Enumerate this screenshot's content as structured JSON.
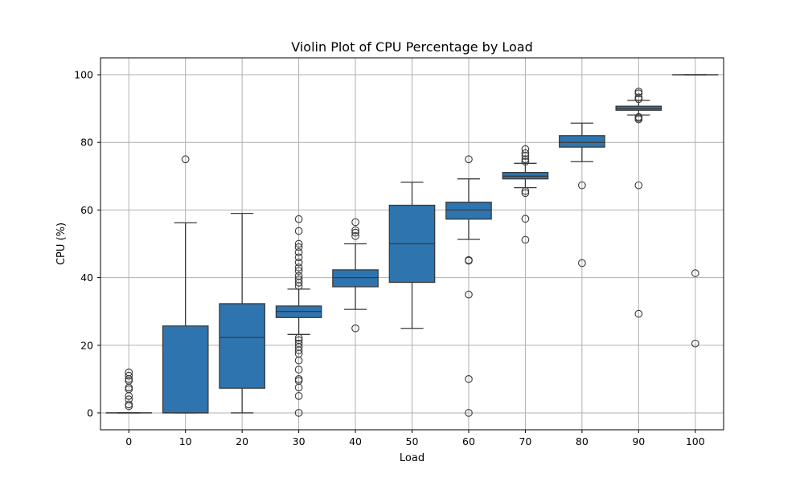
{
  "chart_data": {
    "type": "box",
    "title": "Violin Plot of CPU Percentage by Load",
    "xlabel": "Load",
    "ylabel": "CPU (%)",
    "ylim": [
      -5,
      105
    ],
    "yticks": [
      0,
      20,
      40,
      60,
      80,
      100
    ],
    "grid": true,
    "color": "#2e75b0",
    "categories": [
      "0",
      "10",
      "20",
      "30",
      "40",
      "50",
      "60",
      "70",
      "80",
      "90",
      "100"
    ],
    "boxes": [
      {
        "category": "0",
        "whislo": 0,
        "q1": 0,
        "med": 0,
        "q3": 0,
        "whishi": 0,
        "fliers": [
          2,
          2.5,
          4,
          5,
          7,
          7.5,
          9.5,
          10,
          11,
          12
        ]
      },
      {
        "category": "10",
        "whislo": 0,
        "q1": 0,
        "med": 0,
        "q3": 25.7,
        "whishi": 56.2,
        "fliers": [
          75
        ]
      },
      {
        "category": "20",
        "whislo": 0,
        "q1": 7.3,
        "med": 22.3,
        "q3": 32.3,
        "whishi": 59,
        "fliers": []
      },
      {
        "category": "30",
        "whislo": 23.2,
        "q1": 28.2,
        "med": 30,
        "q3": 31.6,
        "whishi": 36.6,
        "fliers": [
          0,
          5,
          7.5,
          9.5,
          10,
          12.8,
          15.5,
          17.5,
          18.5,
          19.5,
          20.5,
          21.5,
          22.2,
          37.5,
          38.5,
          39.5,
          40.5,
          42,
          43,
          44.5,
          46,
          47.5,
          49,
          50,
          53.8,
          57.3
        ]
      },
      {
        "category": "40",
        "whislo": 30.6,
        "q1": 37.3,
        "med": 40,
        "q3": 42.3,
        "whishi": 50,
        "fliers": [
          25,
          52.3,
          53.3,
          54,
          56.4
        ]
      },
      {
        "category": "50",
        "whislo": 25,
        "q1": 38.6,
        "med": 50,
        "q3": 61.4,
        "whishi": 68.2,
        "fliers": []
      },
      {
        "category": "60",
        "whislo": 51.3,
        "q1": 57.3,
        "med": 60,
        "q3": 62.3,
        "whishi": 69.2,
        "fliers": [
          0,
          10,
          35,
          45,
          45.2,
          75
        ]
      },
      {
        "category": "70",
        "whislo": 66.6,
        "q1": 69.2,
        "med": 70,
        "q3": 71.1,
        "whishi": 73.8,
        "fliers": [
          51.2,
          57.4,
          65,
          65.6,
          74.3,
          75,
          76,
          76.8,
          78
        ]
      },
      {
        "category": "80",
        "whislo": 74.3,
        "q1": 78.6,
        "med": 80,
        "q3": 82,
        "whishi": 85.7,
        "fliers": [
          44.3,
          67.3
        ]
      },
      {
        "category": "90",
        "whislo": 88.1,
        "q1": 89.5,
        "med": 90,
        "q3": 90.7,
        "whishi": 92.4,
        "fliers": [
          29.3,
          67.3,
          86.8,
          87.2,
          87.5,
          92.8,
          93.3,
          94.5,
          95
        ]
      },
      {
        "category": "100",
        "whislo": 100,
        "q1": 100,
        "med": 100,
        "q3": 100,
        "whishi": 100,
        "fliers": [
          20.5,
          41.3
        ]
      }
    ]
  }
}
